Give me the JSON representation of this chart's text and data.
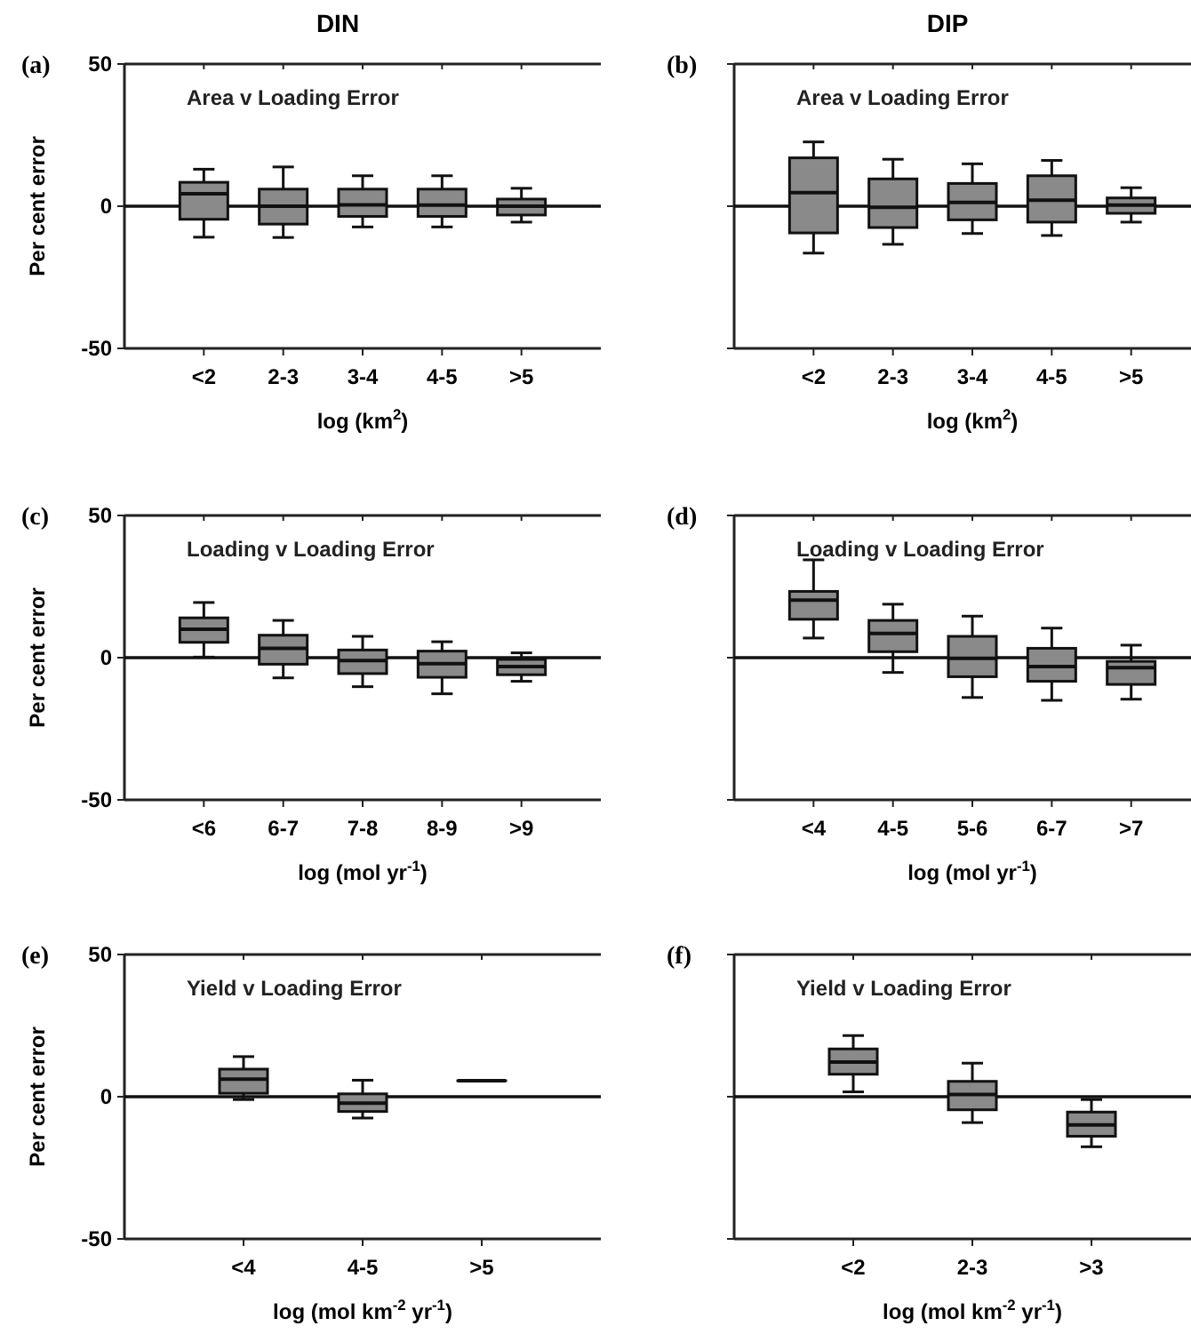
{
  "chart_data": [
    {
      "type": "box",
      "title": "Area v Loading Error",
      "xlabel": "log (km$^{2}$)",
      "ylabel": "Per cent error",
      "annotations": [
        "(a)",
        "DIN"
      ],
      "categories": [
        "<2",
        "2-3",
        "3-4",
        "4-5",
        ">5"
      ],
      "color": "#8a8a8a",
      "ylim": [
        -50,
        50
      ],
      "yticks": [
        -50,
        0,
        50
      ],
      "ref_lines": [
        {
          "axis": "y",
          "value": 0
        }
      ],
      "boxes": [
        {
          "low": -10.9,
          "q1": -4.6,
          "median": 4.4,
          "q3": 8.4,
          "high": 13
        },
        {
          "low": -11,
          "q1": -6.3,
          "median": 0,
          "q3": 6,
          "high": 13.8
        },
        {
          "low": -7.3,
          "q1": -3.6,
          "median": 0.5,
          "q3": 6,
          "high": 10.7
        },
        {
          "low": -7.3,
          "q1": -3.6,
          "median": 0.4,
          "q3": 6,
          "high": 10.7
        },
        {
          "low": -5.6,
          "q1": -3.1,
          "median": 0,
          "q3": 2.5,
          "high": 6.3
        }
      ]
    },
    {
      "type": "box",
      "title": "Area v Loading Error",
      "xlabel": "log (km$^{2}$)",
      "annotations": [
        "(b)",
        "DIP"
      ],
      "categories": [
        "<2",
        "2-3",
        "3-4",
        "4-5",
        ">5"
      ],
      "color": "#8a8a8a",
      "ylim": [
        -50,
        50
      ],
      "yticks": [
        -50,
        0,
        50
      ],
      "tick_labels": "x",
      "ref_lines": [
        {
          "axis": "y",
          "value": 0
        }
      ],
      "boxes": [
        {
          "low": -16.5,
          "q1": -9.4,
          "median": 4.8,
          "q3": 17,
          "high": 22.6
        },
        {
          "low": -13.4,
          "q1": -7.5,
          "median": -0.4,
          "q3": 9.6,
          "high": 16.5
        },
        {
          "low": -9.6,
          "q1": -4.8,
          "median": 1.3,
          "q3": 8,
          "high": 14.9
        },
        {
          "low": -10.3,
          "q1": -5.6,
          "median": 2.1,
          "q3": 10.7,
          "high": 16.1
        },
        {
          "low": -5.6,
          "q1": -2.5,
          "median": 0.4,
          "q3": 2.9,
          "high": 6.5
        }
      ]
    },
    {
      "type": "box",
      "title": "Loading v Loading Error",
      "xlabel": "log (mol yr$^{-1}$)",
      "ylabel": "Per cent error",
      "annotations": [
        "(c)"
      ],
      "categories": [
        "<6",
        "6-7",
        "7-8",
        "8-9",
        ">9"
      ],
      "color": "#8a8a8a",
      "ylim": [
        -50,
        50
      ],
      "yticks": [
        -50,
        0,
        50
      ],
      "ref_lines": [
        {
          "axis": "y",
          "value": 0
        }
      ],
      "boxes": [
        {
          "low": 0.2,
          "q1": 5.4,
          "median": 10,
          "q3": 14,
          "high": 19.4
        },
        {
          "low": -7.1,
          "q1": -2.3,
          "median": 3.3,
          "q3": 7.9,
          "high": 13.1
        },
        {
          "low": -10.2,
          "q1": -5.6,
          "median": -1,
          "q3": 2.7,
          "high": 7.5
        },
        {
          "low": -12.7,
          "q1": -6.9,
          "median": -2.1,
          "q3": 2.3,
          "high": 5.6
        },
        {
          "low": -8.3,
          "q1": -6,
          "median": -3.1,
          "q3": -0.6,
          "high": 1.7
        }
      ]
    },
    {
      "type": "box",
      "title": "Loading v Loading Error",
      "xlabel": "log (mol yr$^{-1}$)",
      "annotations": [
        "(d)"
      ],
      "categories": [
        "<4",
        "4-5",
        "5-6",
        "6-7",
        ">7"
      ],
      "color": "#8a8a8a",
      "ylim": [
        -50,
        50
      ],
      "yticks": [
        -50,
        0,
        50
      ],
      "tick_labels": "x",
      "ref_lines": [
        {
          "axis": "y",
          "value": 0
        }
      ],
      "boxes": [
        {
          "low": 6.9,
          "q1": 13.5,
          "median": 20.2,
          "q3": 23.3,
          "high": 34.4
        },
        {
          "low": -5.2,
          "q1": 2.1,
          "median": 8.5,
          "q3": 13.1,
          "high": 18.8
        },
        {
          "low": -14,
          "q1": -6.7,
          "median": -0.2,
          "q3": 7.5,
          "high": 14.6
        },
        {
          "low": -15,
          "q1": -8.3,
          "median": -3.1,
          "q3": 3.3,
          "high": 10.4
        },
        {
          "low": -14.6,
          "q1": -9.4,
          "median": -3.5,
          "q3": -1.3,
          "high": 4.4
        }
      ]
    },
    {
      "type": "box",
      "title": "Yield v Loading Error",
      "xlabel": "log (mol km$^{-2}$ yr$^{-1}$)",
      "ylabel": "Per cent error",
      "annotations": [
        "(e)"
      ],
      "categories": [
        "<4",
        "4-5",
        ">5"
      ],
      "color": "#8a8a8a",
      "ylim": [
        -50,
        50
      ],
      "yticks": [
        -50,
        0,
        50
      ],
      "ref_lines": [
        {
          "axis": "y",
          "value": 0
        }
      ],
      "boxes": [
        {
          "low": -1,
          "q1": 1.2,
          "median": 6.2,
          "q3": 9.7,
          "high": 14.1
        },
        {
          "low": -7.5,
          "q1": -5.2,
          "median": -2.3,
          "q3": 1,
          "high": 5.8
        },
        {
          "low": 5.6,
          "q1": 5.6,
          "median": 5.6,
          "q3": 5.6,
          "high": 5.6
        }
      ]
    },
    {
      "type": "box",
      "title": "Yield v Loading Error",
      "xlabel": "log (mol km$^{-2}$ yr$^{-1}$)",
      "annotations": [
        "(f)"
      ],
      "categories": [
        "<2",
        "2-3",
        ">3"
      ],
      "color": "#8a8a8a",
      "ylim": [
        -50,
        50
      ],
      "yticks": [
        -50,
        0,
        50
      ],
      "tick_labels": "x",
      "ref_lines": [
        {
          "axis": "y",
          "value": 0
        }
      ],
      "boxes": [
        {
          "low": 1.7,
          "q1": 7.9,
          "median": 12.2,
          "q3": 16.8,
          "high": 21.5
        },
        {
          "low": -9.1,
          "q1": -4.6,
          "median": 0.8,
          "q3": 5.4,
          "high": 11.8
        },
        {
          "low": -17.6,
          "q1": -13.9,
          "median": -9.9,
          "q3": -5.4,
          "high": -1
        }
      ]
    }
  ]
}
